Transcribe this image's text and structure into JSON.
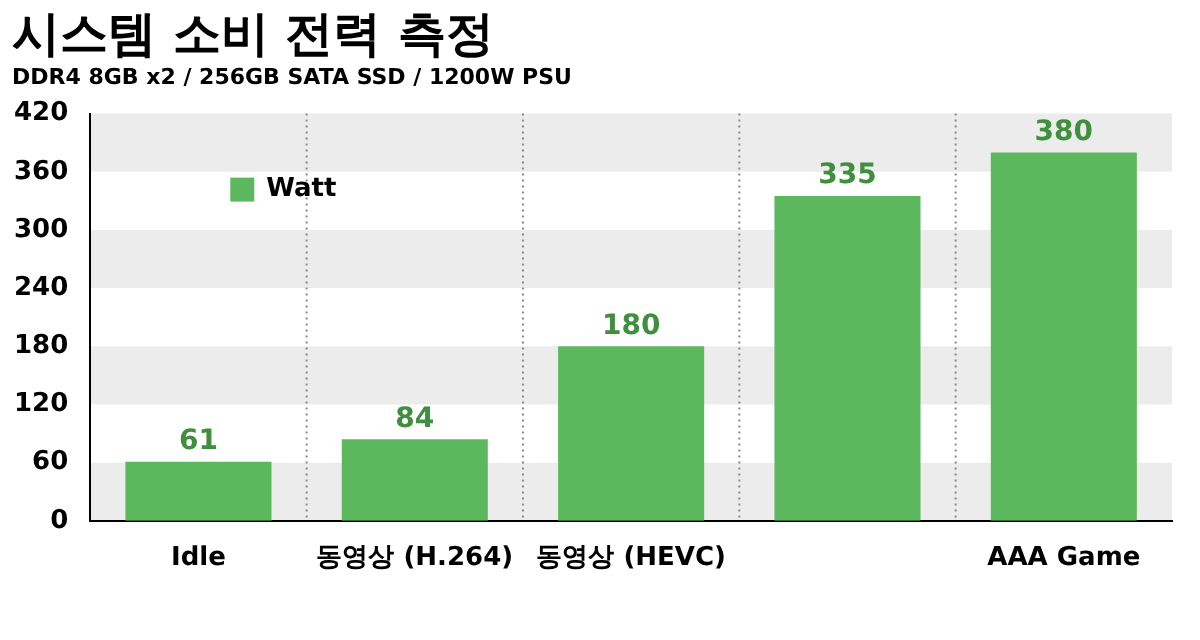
{
  "chart_data": {
    "type": "bar",
    "title": "시스템 소비 전력 측정",
    "subtitle": "DDR4 8GB x2 / 256GB SATA SSD / 1200W PSU",
    "categories": [
      "Idle",
      "동영상 (H.264)",
      "동영상 (HEVC)",
      null,
      "AAA Game"
    ],
    "series": [
      {
        "name": "Watt",
        "color": "#5cb85c",
        "values": [
          61,
          84,
          180,
          335,
          380
        ]
      }
    ],
    "ylim": [
      0,
      420
    ],
    "yticks": [
      0,
      60,
      120,
      180,
      240,
      300,
      360,
      420
    ],
    "grid": true,
    "legend": "top left",
    "data_labels": true
  }
}
